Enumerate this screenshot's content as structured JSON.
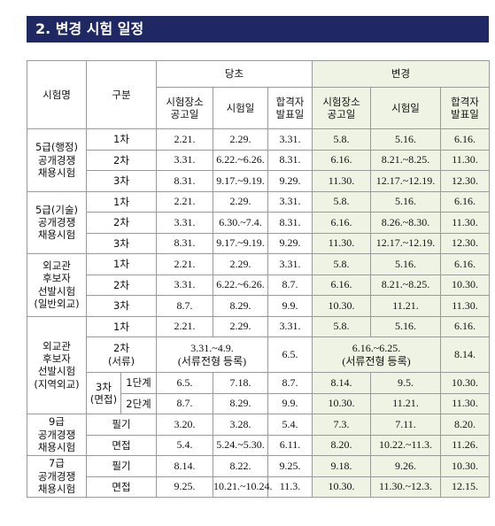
{
  "title": "2. 변경 시험 일정",
  "header": {
    "name": "시험명",
    "division": "구분",
    "original": {
      "label": "당초",
      "columns": [
        "시험장소\n공고일",
        "시험일",
        "합격자\n발표일"
      ]
    },
    "changed": {
      "label": "변경",
      "columns": [
        "시험장소\n공고일",
        "시험일",
        "합격자\n발표일"
      ]
    }
  },
  "groups": [
    {
      "name": "5급(행정)\n공개경쟁\n채용시험",
      "rows": [
        {
          "label": "1차",
          "cells": [
            "2.21.",
            "2.29.",
            "3.31.",
            "5.8.",
            "5.16.",
            "6.16."
          ]
        },
        {
          "label": "2차",
          "cells": [
            "3.31.",
            "6.22.~6.26.",
            "8.31.",
            "6.16.",
            "8.21.~8.25.",
            "11.30."
          ]
        },
        {
          "label": "3차",
          "cells": [
            "8.31.",
            "9.17.~9.19.",
            "9.29.",
            "11.30.",
            "12.17.~12.19.",
            "12.30."
          ]
        }
      ]
    },
    {
      "name": "5급(기술)\n공개경쟁\n채용시험",
      "rows": [
        {
          "label": "1차",
          "cells": [
            "2.21.",
            "2.29.",
            "3.31.",
            "5.8.",
            "5.16.",
            "6.16."
          ]
        },
        {
          "label": "2차",
          "cells": [
            "3.31.",
            "6.30.~7.4.",
            "8.31.",
            "6.16.",
            "8.26.~8.30.",
            "11.30."
          ]
        },
        {
          "label": "3차",
          "cells": [
            "8.31.",
            "9.17.~9.19.",
            "9.29.",
            "11.30.",
            "12.17.~12.19.",
            "12.30."
          ]
        }
      ]
    },
    {
      "name": "외교관\n후보자\n선발시험\n(일반외교)",
      "rows": [
        {
          "label": "1차",
          "cells": [
            "2.21.",
            "2.29.",
            "3.31.",
            "5.8.",
            "5.16.",
            "6.16."
          ]
        },
        {
          "label": "2차",
          "cells": [
            "3.31.",
            "6.22.~6.26.",
            "8.7.",
            "6.16.",
            "8.21.~8.25.",
            "10.30."
          ]
        },
        {
          "label": "3차",
          "cells": [
            "8.7.",
            "8.29.",
            "9.9.",
            "10.30.",
            "11.21.",
            "11.30."
          ]
        }
      ]
    },
    {
      "name": "외교관\n후보자\n선발시험\n(지역외교)",
      "rows": [
        {
          "label": "1차",
          "cells": [
            "2.21.",
            "2.29.",
            "3.31.",
            "5.8.",
            "5.16.",
            "6.16."
          ]
        },
        {
          "label": "2차\n(서류)",
          "cells": [
            "3.31.~4.9.\n(서류전형 등록)",
            "6.5.",
            "6.16.~6.25.\n(서류전형 등록)",
            "8.14."
          ]
        },
        {
          "label": "3차\n(면접)",
          "stages": [
            {
              "name": "1단계",
              "cells": [
                "6.5.",
                "7.18.",
                "8.7.",
                "8.14.",
                "9.5.",
                "10.30."
              ]
            },
            {
              "name": "2단계",
              "cells": [
                "8.7.",
                "8.29.",
                "9.9.",
                "10.30.",
                "11.21.",
                "11.30."
              ]
            }
          ]
        }
      ]
    },
    {
      "name": "9급\n공개경쟁\n채용시험",
      "rows": [
        {
          "label": "필기",
          "cells": [
            "3.20.",
            "3.28.",
            "5.4.",
            "7.3.",
            "7.11.",
            "8.20."
          ]
        },
        {
          "label": "면접",
          "cells": [
            "5.4.",
            "5.24.~5.30.",
            "6.11.",
            "8.20.",
            "10.22.~11.3.",
            "11.26."
          ]
        }
      ]
    },
    {
      "name": "7급\n공개경쟁\n채용시험",
      "rows": [
        {
          "label": "필기",
          "cells": [
            "8.14.",
            "8.22.",
            "9.25.",
            "9.18.",
            "9.26.",
            "10.30."
          ]
        },
        {
          "label": "면접",
          "cells": [
            "9.25.",
            "10.21.~10.24.",
            "11.3.",
            "10.30.",
            "11.30.~12.3.",
            "12.15."
          ]
        }
      ]
    }
  ]
}
